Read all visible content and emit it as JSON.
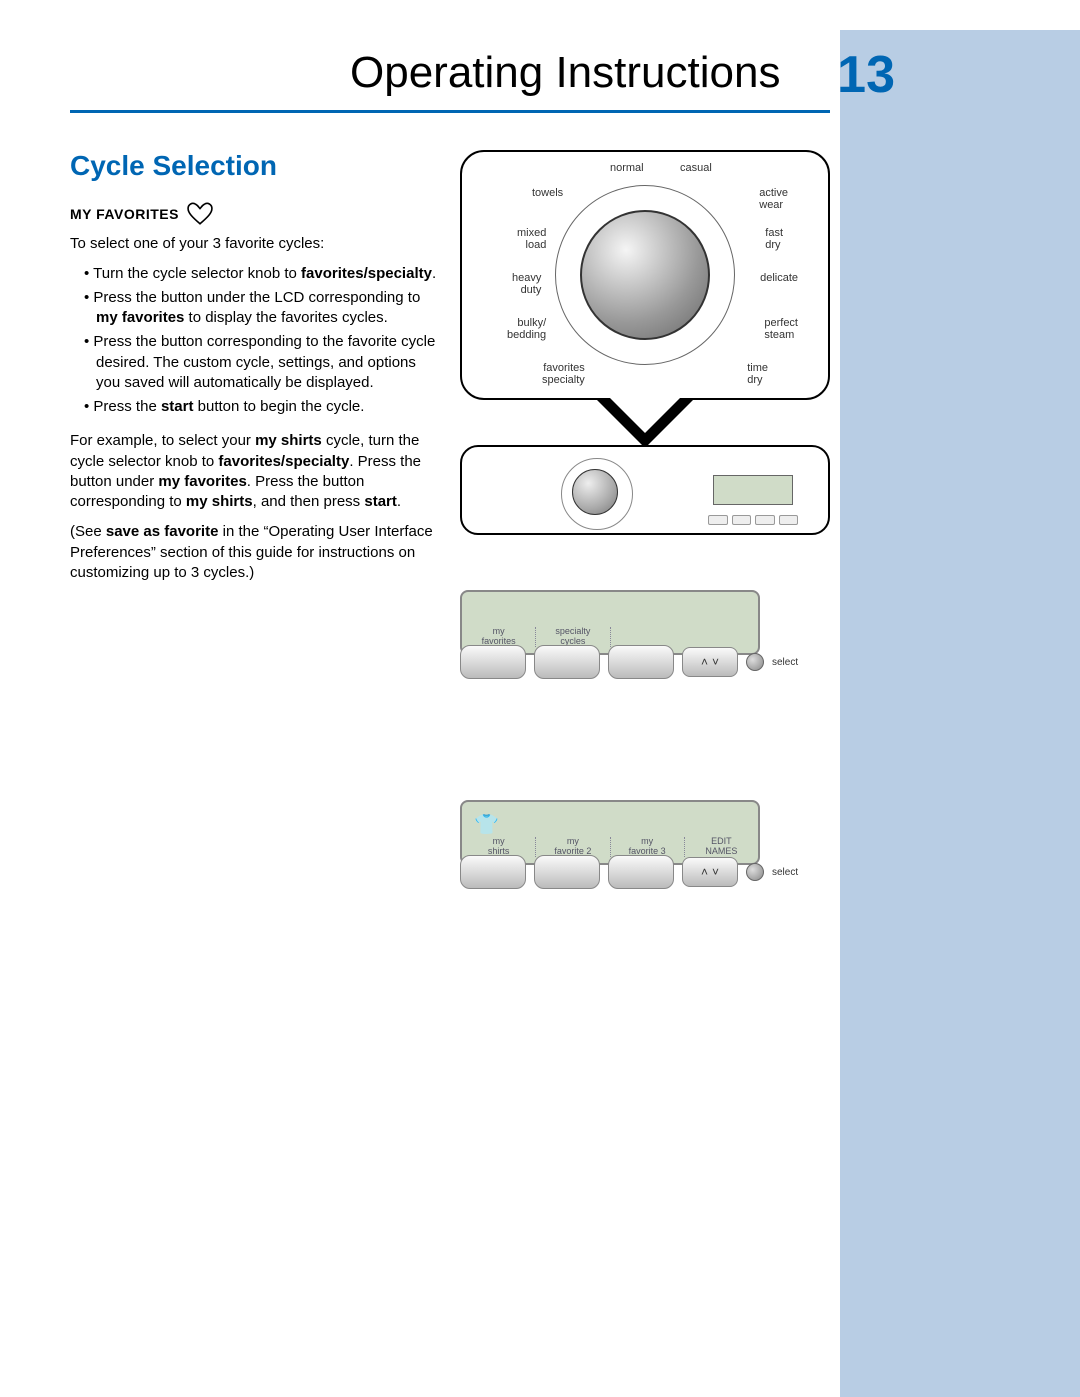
{
  "header": {
    "title": "Operating Instructions",
    "page_number": "13"
  },
  "section": {
    "title": "Cycle Selection",
    "subheading": "MY FAVORITES",
    "intro": "To select one of your 3 favorite cycles:",
    "bullets": {
      "b1_pre": "Turn the cycle selector knob to ",
      "b1_bold": "favorites/specialty",
      "b1_post": ".",
      "b2_pre": "Press the button under the LCD corresponding to ",
      "b2_bold": "my favorites",
      "b2_post": " to display the favorites cycles.",
      "b3": "Press the button corresponding to the favorite cycle desired. The custom cycle, settings, and options you saved will automatically be displayed.",
      "b4_pre": "Press the ",
      "b4_bold": "start",
      "b4_post": " button to begin the cycle."
    },
    "example_para": "For example, to select your my shirts cycle, turn the cycle selector knob to favorites/specialty. Press the button under my favorites. Press the button corresponding to my shirts, and then press start.",
    "see_para": "(See save as favorite in the \"Operating User Interface Preferences\" section of this guide for instructions on customizing up to 3 cycles.)"
  },
  "dial": {
    "labels": {
      "normal": "normal",
      "casual": "casual",
      "towels": "towels",
      "active_wear": "active\nwear",
      "mixed_load": "mixed\nload",
      "fast_dry": "fast\ndry",
      "heavy_duty": "heavy\nduty",
      "delicate": "delicate",
      "bulky_bedding": "bulky/\nbedding",
      "perfect_steam": "perfect\nsteam",
      "favorites_specialty": "favorites\nspecialty",
      "time_dry": "time\ndry"
    }
  },
  "lcd1": {
    "col1": "my\nfavorites",
    "col2": "specialty\ncycles",
    "col3": "",
    "col4": ""
  },
  "lcd2": {
    "col1": "my\nshirts",
    "col2": "my\nfavorite 2",
    "col3": "my\nfavorite 3",
    "col4": "EDIT\nNAMES"
  },
  "controls": {
    "select_label": "select"
  },
  "colors": {
    "accent_blue": "#0066b3",
    "sidebar_blue": "#b8cde4",
    "lcd_green": "#d0dcc8"
  }
}
